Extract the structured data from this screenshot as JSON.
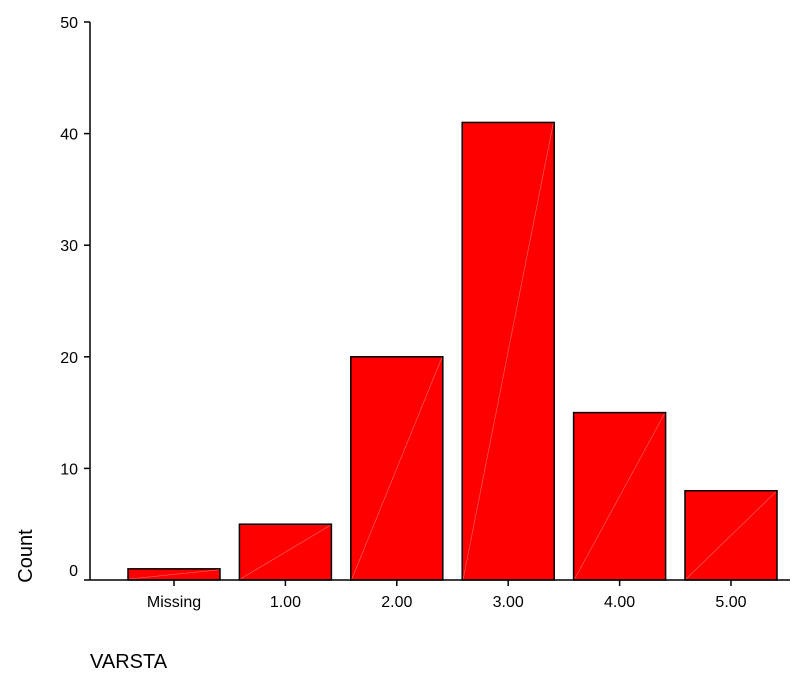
{
  "chart_data": {
    "type": "bar",
    "categories": [
      "Missing",
      "1.00",
      "2.00",
      "3.00",
      "4.00",
      "5.00"
    ],
    "values": [
      1,
      5,
      20,
      41,
      15,
      8
    ],
    "xlabel": "VARSTA",
    "ylabel": "Count",
    "ylim": [
      0,
      50
    ],
    "yticks": [
      0,
      10,
      20,
      30,
      40,
      50
    ],
    "grid": false,
    "legend": "none",
    "bar_color": "#ff0000",
    "bar_edge_color": "#000000"
  }
}
